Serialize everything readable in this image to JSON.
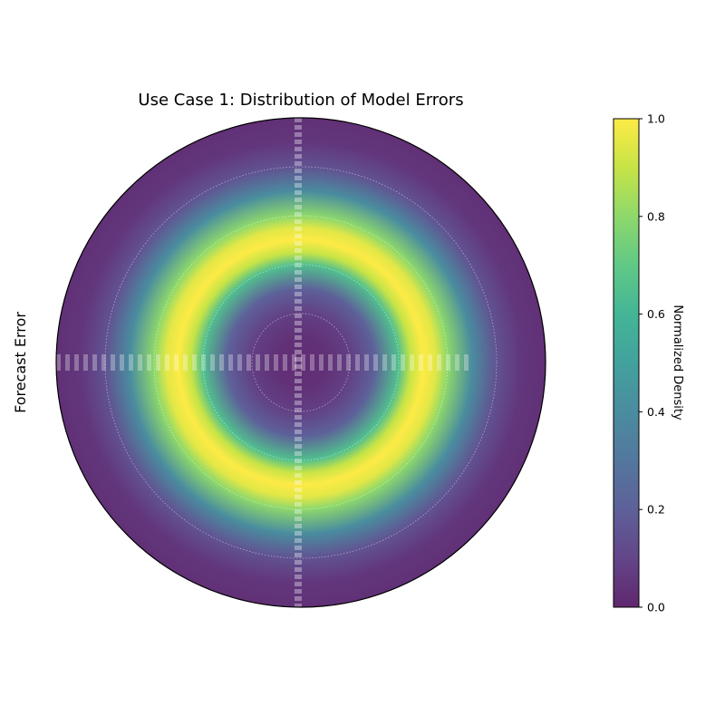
{
  "chart_data": {
    "type": "heatmap",
    "projection": "polar",
    "title": "Use Case 1: Distribution of Model Errors",
    "ylabel": "Forecast Error",
    "colormap": "viridis",
    "colorbar": {
      "label": "Normalized Density",
      "range": [
        0.0,
        1.0
      ],
      "ticks": [
        "0.0",
        "0.2",
        "0.4",
        "0.6",
        "0.8",
        "1.0"
      ]
    },
    "density_profile": {
      "description_values": "normalized density as a function of radius (fraction of outer radius)",
      "radius": [
        0.0,
        0.1,
        0.2,
        0.3,
        0.4,
        0.45,
        0.5,
        0.55,
        0.6,
        0.7,
        0.8,
        0.9,
        1.0
      ],
      "density": [
        0.02,
        0.03,
        0.08,
        0.2,
        0.65,
        0.9,
        1.0,
        0.95,
        0.8,
        0.4,
        0.15,
        0.05,
        0.03
      ]
    },
    "radial_grid": [
      0.2,
      0.4,
      0.6,
      0.8
    ],
    "grid": true,
    "colors": {
      "low": "#472c7a",
      "mid": "#21908d",
      "high": "#fde725"
    }
  }
}
